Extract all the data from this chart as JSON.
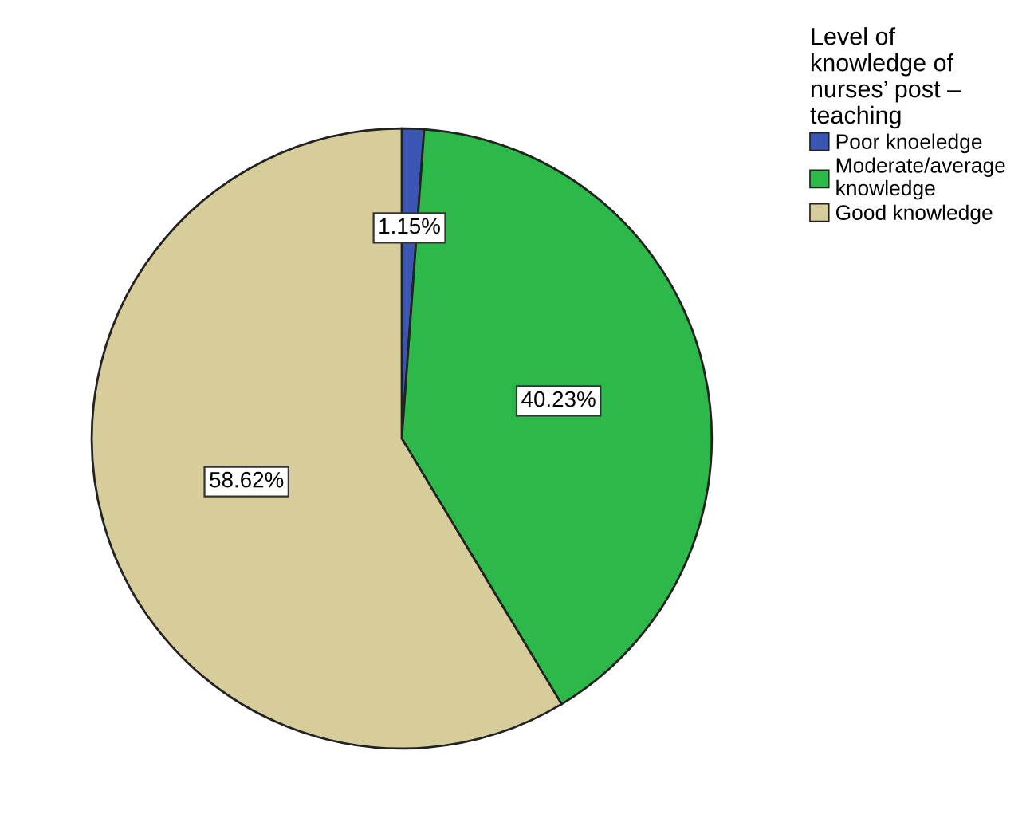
{
  "chart_data": {
    "type": "pie",
    "legend_title": "Level of\nknowledge of\nnurses’ post –\nteaching",
    "categories": [
      "Poor knoeledge",
      "Moderate/average\nknowledge",
      "Good knowledge"
    ],
    "values": [
      1.15,
      40.23,
      58.62
    ],
    "colors": [
      "#3a55b4",
      "#2db84a",
      "#d6cd9b"
    ],
    "value_labels": [
      "1.15%",
      "40.23%",
      "58.62%"
    ],
    "legend": "top right"
  }
}
